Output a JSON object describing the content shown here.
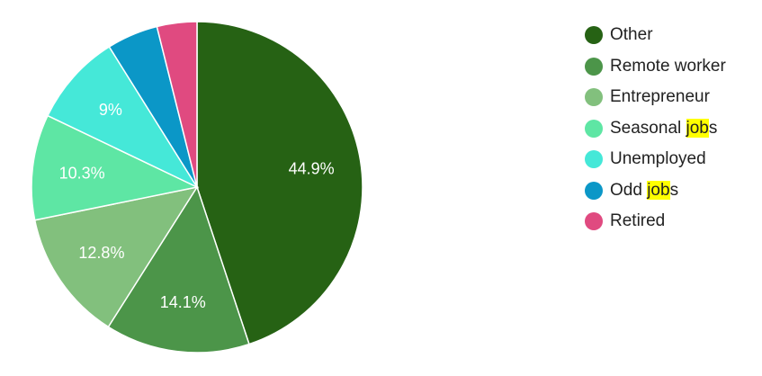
{
  "chart_data": {
    "type": "pie",
    "title": "",
    "legend_position": "right",
    "categories": [
      "Other",
      "Remote worker",
      "Entrepreneur",
      "Seasonal jobs",
      "Unemployed",
      "Odd jobs",
      "Retired"
    ],
    "values": [
      44.9,
      14.1,
      12.8,
      10.3,
      9.0,
      5.0,
      3.9
    ],
    "labels": [
      "44.9%",
      "14.1%",
      "12.8%",
      "10.3%",
      "9%",
      "",
      ""
    ],
    "colors": [
      "#266214",
      "#4c9549",
      "#82c07d",
      "#5ee6a4",
      "#45e8d8",
      "#0b97c7",
      "#e04a80"
    ],
    "highlighted_text": "job",
    "highlight_color": "#ffff00"
  }
}
